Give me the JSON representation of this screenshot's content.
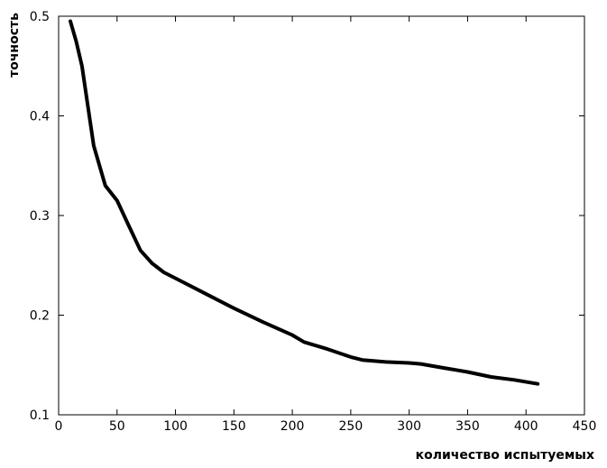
{
  "chart_data": {
    "type": "line",
    "title": "",
    "xlabel": "количество испытуемых",
    "ylabel": "точность",
    "xlim": [
      0,
      450
    ],
    "ylim": [
      0.1,
      0.5
    ],
    "xticks": [
      0,
      50,
      100,
      150,
      200,
      250,
      300,
      350,
      400,
      450
    ],
    "yticks": [
      0.1,
      0.2,
      0.3,
      0.4,
      0.5
    ],
    "xtick_labels": [
      "0",
      "50",
      "100",
      "150",
      "200",
      "250",
      "300",
      "350",
      "400",
      "450"
    ],
    "ytick_labels": [
      "0.1",
      "0.2",
      "0.3",
      "0.4",
      "0.5"
    ],
    "grid": false,
    "series": [
      {
        "color": "#000000",
        "x": [
          10,
          15,
          20,
          25,
          30,
          40,
          50,
          60,
          70,
          80,
          90,
          100,
          125,
          150,
          175,
          200,
          210,
          230,
          250,
          260,
          280,
          300,
          310,
          330,
          350,
          370,
          390,
          410
        ],
        "y": [
          0.495,
          0.475,
          0.45,
          0.41,
          0.37,
          0.33,
          0.315,
          0.29,
          0.265,
          0.252,
          0.243,
          0.237,
          0.222,
          0.207,
          0.193,
          0.18,
          0.173,
          0.166,
          0.158,
          0.155,
          0.153,
          0.152,
          0.151,
          0.147,
          0.143,
          0.138,
          0.135,
          0.131
        ]
      }
    ]
  }
}
